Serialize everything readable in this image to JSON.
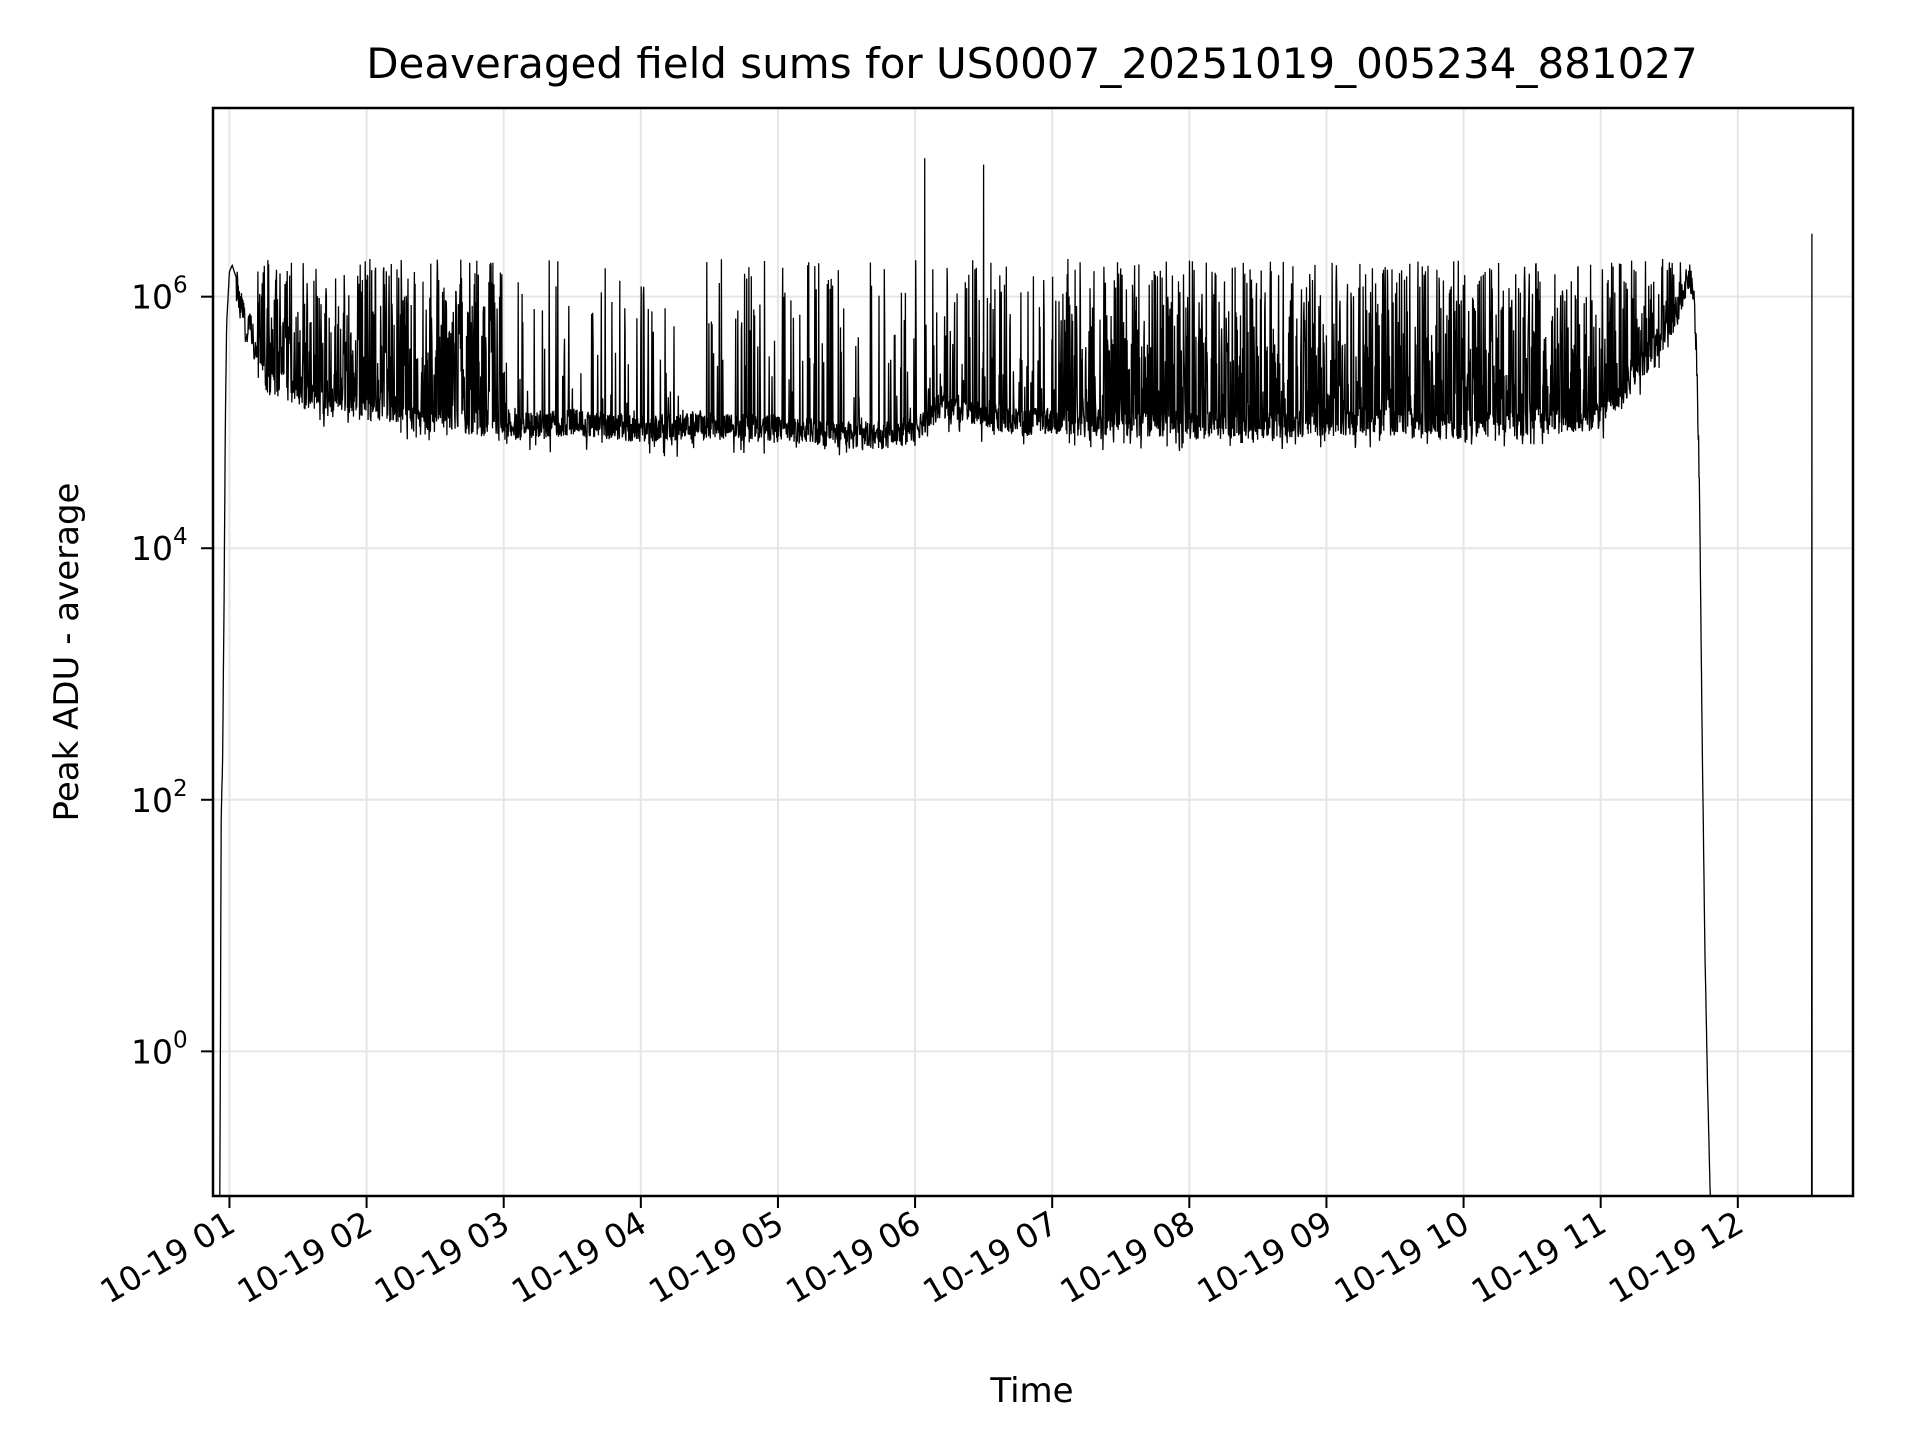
{
  "chart_data": {
    "type": "line",
    "title": "Deaveraged field sums for US0007_20251019_005234_881027",
    "xlabel": "Time",
    "ylabel": "Peak ADU - average",
    "yscale": "log",
    "ylim_exponents": [
      -1.15,
      7.5
    ],
    "xlim_hours": [
      0.88,
      12.84
    ],
    "grid": true,
    "legend": "none",
    "colors": {
      "line": "#000000",
      "grid": "#e6e6e6",
      "background": "#ffffff"
    },
    "x_ticks": [
      {
        "hour": 1,
        "label": "10-19 01"
      },
      {
        "hour": 2,
        "label": "10-19 02"
      },
      {
        "hour": 3,
        "label": "10-19 03"
      },
      {
        "hour": 4,
        "label": "10-19 04"
      },
      {
        "hour": 5,
        "label": "10-19 05"
      },
      {
        "hour": 6,
        "label": "10-19 06"
      },
      {
        "hour": 7,
        "label": "10-19 07"
      },
      {
        "hour": 8,
        "label": "10-19 08"
      },
      {
        "hour": 9,
        "label": "10-19 09"
      },
      {
        "hour": 10,
        "label": "10-19 10"
      },
      {
        "hour": 11,
        "label": "10-19 11"
      },
      {
        "hour": 12,
        "label": "10-19 12"
      }
    ],
    "y_ticks": [
      {
        "exp": 6,
        "base": "10",
        "sup": "6"
      },
      {
        "exp": 4,
        "base": "10",
        "sup": "4"
      },
      {
        "exp": 2,
        "base": "10",
        "sup": "2"
      },
      {
        "exp": 0,
        "base": "10",
        "sup": "0"
      }
    ],
    "series": [
      {
        "name": "Peak ADU - average",
        "x_hours": [
          0.88,
          0.93,
          0.94,
          0.95,
          0.96,
          0.97,
          0.98,
          1.0,
          1.02,
          1.05,
          1.08,
          1.1,
          1.12,
          1.14,
          1.16,
          1.2,
          1.25,
          1.3,
          1.35,
          1.4,
          1.5,
          1.6,
          1.7,
          1.8,
          1.9,
          2.0,
          2.2,
          2.4,
          2.6,
          2.8,
          3.0,
          3.2,
          3.5,
          4.0,
          4.5,
          5.0,
          5.5,
          5.8,
          6.0,
          6.2,
          6.5,
          6.8,
          7.0,
          7.2,
          7.5,
          8.0,
          8.5,
          9.0,
          9.5,
          10.0,
          10.5,
          11.0,
          11.2,
          11.4,
          11.5,
          11.55,
          11.6,
          11.62,
          11.64,
          11.65,
          11.66,
          11.68,
          11.7,
          11.72,
          11.74,
          11.76,
          11.78,
          11.8
        ],
        "y_log10": [
          -1.2,
          -1.2,
          1.9,
          2.3,
          3.5,
          5.0,
          5.8,
          6.2,
          6.25,
          6.15,
          5.9,
          5.95,
          5.7,
          5.8,
          5.75,
          5.5,
          5.4,
          5.3,
          5.25,
          5.35,
          5.2,
          5.2,
          5.15,
          5.2,
          5.15,
          5.1,
          5.1,
          5.0,
          5.05,
          5.0,
          4.95,
          4.98,
          5.0,
          4.95,
          4.97,
          4.95,
          4.9,
          4.9,
          4.95,
          5.15,
          5.05,
          5.0,
          5.02,
          5.0,
          5.0,
          4.98,
          4.97,
          5.0,
          5.0,
          4.97,
          5.0,
          5.05,
          5.3,
          5.6,
          5.75,
          5.85,
          6.05,
          6.1,
          6.15,
          6.15,
          6.1,
          6.0,
          5.5,
          4.5,
          2.5,
          0.8,
          -0.3,
          -1.2
        ],
        "spikes": [
          {
            "hour": 6.07,
            "y_log10": 7.1
          },
          {
            "hour": 6.5,
            "y_log10": 7.05
          },
          {
            "hour": 12.54,
            "y_log10": 6.5
          }
        ]
      }
    ]
  }
}
